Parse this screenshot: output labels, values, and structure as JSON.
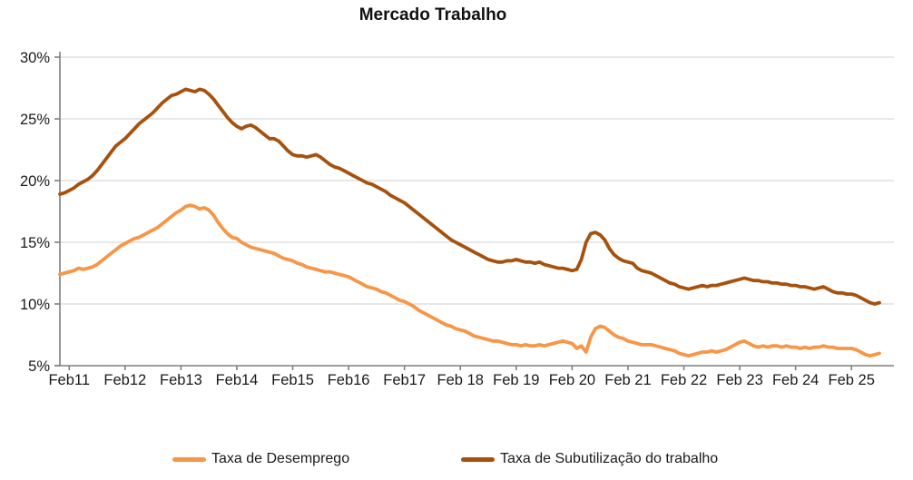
{
  "chart_data": {
    "type": "line",
    "title": "Mercado Trabalho",
    "x_frequency": "monthly",
    "x_start": "Dec 2010",
    "x_end": "Aug 2025",
    "x_tick_labels": [
      "Feb11",
      "Feb12",
      "Feb13",
      "Feb14",
      "Feb15",
      "Feb16",
      "Feb17",
      "Feb 18",
      "Feb 19",
      "Feb 20",
      "Feb 21",
      "Feb 22",
      "Feb 23",
      "Feb 24",
      "Feb 25"
    ],
    "y_tick_labels": [
      "30%",
      "25%",
      "20%",
      "15%",
      "10%",
      "5%"
    ],
    "ylim": [
      5,
      30
    ],
    "grid": true,
    "legend_position": "bottom",
    "axis_color": "#7f7f7f",
    "gridline_color": "#dadada",
    "series": [
      {
        "name": "Taxa de Desemprego",
        "color": "#F79646",
        "values": [
          12.4,
          12.5,
          12.6,
          12.7,
          12.9,
          12.8,
          12.9,
          13.0,
          13.2,
          13.5,
          13.8,
          14.1,
          14.4,
          14.7,
          14.9,
          15.1,
          15.3,
          15.4,
          15.6,
          15.8,
          16.0,
          16.2,
          16.5,
          16.8,
          17.1,
          17.4,
          17.6,
          17.9,
          18.0,
          17.9,
          17.7,
          17.8,
          17.6,
          17.2,
          16.6,
          16.1,
          15.7,
          15.4,
          15.3,
          15.0,
          14.8,
          14.6,
          14.5,
          14.4,
          14.3,
          14.2,
          14.1,
          13.9,
          13.7,
          13.6,
          13.5,
          13.3,
          13.2,
          13.0,
          12.9,
          12.8,
          12.7,
          12.6,
          12.6,
          12.5,
          12.4,
          12.3,
          12.2,
          12.0,
          11.8,
          11.6,
          11.4,
          11.3,
          11.2,
          11.0,
          10.9,
          10.7,
          10.5,
          10.3,
          10.2,
          10.0,
          9.8,
          9.5,
          9.3,
          9.1,
          8.9,
          8.7,
          8.5,
          8.3,
          8.2,
          8.0,
          7.9,
          7.8,
          7.6,
          7.4,
          7.3,
          7.2,
          7.1,
          7.0,
          7.0,
          6.9,
          6.8,
          6.7,
          6.7,
          6.6,
          6.7,
          6.6,
          6.6,
          6.7,
          6.6,
          6.7,
          6.8,
          6.9,
          7.0,
          6.9,
          6.8,
          6.4,
          6.6,
          6.1,
          7.3,
          8.0,
          8.2,
          8.1,
          7.8,
          7.5,
          7.3,
          7.2,
          7.0,
          6.9,
          6.8,
          6.7,
          6.7,
          6.7,
          6.6,
          6.5,
          6.4,
          6.3,
          6.2,
          6.0,
          5.9,
          5.8,
          5.9,
          6.0,
          6.1,
          6.1,
          6.2,
          6.1,
          6.2,
          6.3,
          6.5,
          6.7,
          6.9,
          7.0,
          6.8,
          6.6,
          6.5,
          6.6,
          6.5,
          6.6,
          6.6,
          6.5,
          6.6,
          6.5,
          6.5,
          6.4,
          6.5,
          6.4,
          6.5,
          6.5,
          6.6,
          6.5,
          6.5,
          6.4,
          6.4,
          6.4,
          6.4,
          6.3,
          6.1,
          5.9,
          5.8,
          5.9,
          6.0
        ]
      },
      {
        "name": "Taxa de Subutilização do trabalho",
        "color": "#A6520E",
        "values": [
          18.9,
          19.0,
          19.2,
          19.4,
          19.7,
          19.9,
          20.1,
          20.4,
          20.8,
          21.3,
          21.8,
          22.3,
          22.8,
          23.1,
          23.4,
          23.8,
          24.2,
          24.6,
          24.9,
          25.2,
          25.5,
          25.9,
          26.3,
          26.6,
          26.9,
          27.0,
          27.2,
          27.4,
          27.3,
          27.2,
          27.4,
          27.3,
          27.0,
          26.6,
          26.1,
          25.6,
          25.1,
          24.7,
          24.4,
          24.2,
          24.4,
          24.5,
          24.3,
          24.0,
          23.7,
          23.4,
          23.4,
          23.2,
          22.8,
          22.4,
          22.1,
          22.0,
          22.0,
          21.9,
          22.0,
          22.1,
          21.9,
          21.6,
          21.3,
          21.1,
          21.0,
          20.8,
          20.6,
          20.4,
          20.2,
          20.0,
          19.8,
          19.7,
          19.5,
          19.3,
          19.1,
          18.8,
          18.6,
          18.4,
          18.2,
          17.9,
          17.6,
          17.3,
          17.0,
          16.7,
          16.4,
          16.1,
          15.8,
          15.5,
          15.2,
          15.0,
          14.8,
          14.6,
          14.4,
          14.2,
          14.0,
          13.8,
          13.6,
          13.5,
          13.4,
          13.4,
          13.5,
          13.5,
          13.6,
          13.5,
          13.4,
          13.4,
          13.3,
          13.4,
          13.2,
          13.1,
          13.0,
          12.9,
          12.9,
          12.8,
          12.7,
          12.8,
          13.6,
          15.0,
          15.7,
          15.8,
          15.6,
          15.2,
          14.5,
          14.0,
          13.7,
          13.5,
          13.4,
          13.3,
          12.9,
          12.7,
          12.6,
          12.5,
          12.3,
          12.1,
          11.9,
          11.7,
          11.6,
          11.4,
          11.3,
          11.2,
          11.3,
          11.4,
          11.5,
          11.4,
          11.5,
          11.5,
          11.6,
          11.7,
          11.8,
          11.9,
          12.0,
          12.1,
          12.0,
          11.9,
          11.9,
          11.8,
          11.8,
          11.7,
          11.7,
          11.6,
          11.6,
          11.5,
          11.5,
          11.4,
          11.4,
          11.3,
          11.2,
          11.3,
          11.4,
          11.2,
          11.0,
          10.9,
          10.9,
          10.8,
          10.8,
          10.7,
          10.5,
          10.3,
          10.1,
          10.0,
          10.1
        ]
      }
    ]
  }
}
